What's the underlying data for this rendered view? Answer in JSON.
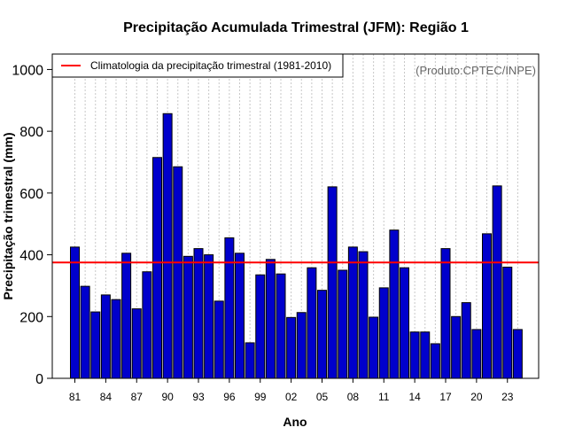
{
  "chart_data": {
    "type": "bar",
    "title": "Precipitação Acumulada Trimestral (JFM): Região 1",
    "xlabel": "Ano",
    "ylabel": "Precipitação trimestral (mm)",
    "ylim": [
      0,
      1050
    ],
    "yticks": [
      0,
      200,
      400,
      600,
      800,
      1000
    ],
    "grid": "vertical dotted",
    "credit": "(Produto:CPTEC/INPE)",
    "years": [
      1981,
      1982,
      1983,
      1984,
      1985,
      1986,
      1987,
      1988,
      1989,
      1990,
      1991,
      1992,
      1993,
      1994,
      1995,
      1996,
      1997,
      1998,
      1999,
      2000,
      2001,
      2002,
      2003,
      2004,
      2005,
      2006,
      2007,
      2008,
      2009,
      2010,
      2011,
      2012,
      2013,
      2014,
      2015,
      2016,
      2017,
      2018,
      2019,
      2020,
      2021,
      2022,
      2023,
      2024
    ],
    "values": [
      425,
      298,
      215,
      270,
      255,
      405,
      225,
      345,
      715,
      857,
      685,
      395,
      420,
      400,
      250,
      455,
      405,
      115,
      335,
      385,
      338,
      197,
      213,
      358,
      285,
      620,
      350,
      425,
      410,
      198,
      293,
      480,
      358,
      150,
      150,
      112,
      420,
      200,
      245,
      158,
      468,
      623,
      360,
      158
    ],
    "tick_labels": [
      {
        "year": 1981,
        "label": "81"
      },
      {
        "year": 1984,
        "label": "84"
      },
      {
        "year": 1987,
        "label": "87"
      },
      {
        "year": 1990,
        "label": "90"
      },
      {
        "year": 1993,
        "label": "93"
      },
      {
        "year": 1996,
        "label": "96"
      },
      {
        "year": 1999,
        "label": "99"
      },
      {
        "year": 2002,
        "label": "02"
      },
      {
        "year": 2005,
        "label": "05"
      },
      {
        "year": 2008,
        "label": "08"
      },
      {
        "year": 2011,
        "label": "11"
      },
      {
        "year": 2014,
        "label": "14"
      },
      {
        "year": 2017,
        "label": "17"
      },
      {
        "year": 2020,
        "label": "20"
      },
      {
        "year": 2023,
        "label": "23"
      }
    ],
    "climatology": {
      "label": "Climatologia da precipitação trimestral (1981-2010)",
      "value": 375,
      "color": "#ff0000"
    },
    "legend_position": "top-left",
    "bar_color": "#0000cc",
    "bar_edge_color": "#000000"
  }
}
